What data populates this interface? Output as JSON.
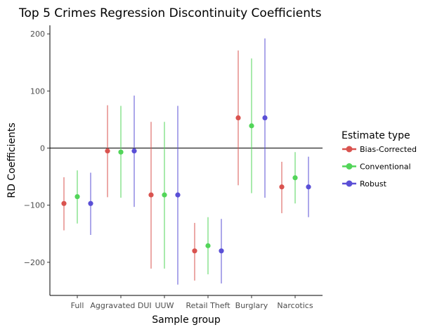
{
  "chart_data": {
    "type": "scatter",
    "title": "Top 5 Crimes Regression Discontinuity Coefficients",
    "xlabel": "Sample group",
    "ylabel": "RD Coefficients",
    "categories": [
      "Full",
      "Aggravated DUI",
      "UUW",
      "Retail Theft",
      "Burglary",
      "Narcotics"
    ],
    "ylim": [
      -258,
      215
    ],
    "yticks": [
      -200,
      -100,
      0,
      100,
      200
    ],
    "yticklabels": [
      "−200",
      "−100",
      "0",
      "100",
      "200"
    ],
    "hline": 0,
    "grid": false,
    "legend": {
      "title": "Estimate type",
      "position": "right"
    },
    "series": [
      {
        "name": "Bias-Corrected",
        "color": "#d9534f",
        "points": [
          -97,
          -5,
          -82,
          -180,
          53,
          -68
        ],
        "low": [
          -144,
          -86,
          -211,
          -232,
          -65,
          -114
        ],
        "high": [
          -51,
          75,
          46,
          -131,
          171,
          -24
        ]
      },
      {
        "name": "Conventional",
        "color": "#52d559",
        "points": [
          -85,
          -7,
          -82,
          -171,
          39,
          -52
        ],
        "low": [
          -132,
          -87,
          -211,
          -221,
          -79,
          -97
        ],
        "high": [
          -39,
          74,
          46,
          -121,
          157,
          -7
        ]
      },
      {
        "name": "Robust",
        "color": "#5a4fd6",
        "points": [
          -97,
          -5,
          -82,
          -180,
          53,
          -68
        ],
        "low": [
          -152,
          -103,
          -239,
          -237,
          -87,
          -121
        ],
        "high": [
          -43,
          92,
          74,
          -124,
          192,
          -15
        ]
      }
    ]
  }
}
